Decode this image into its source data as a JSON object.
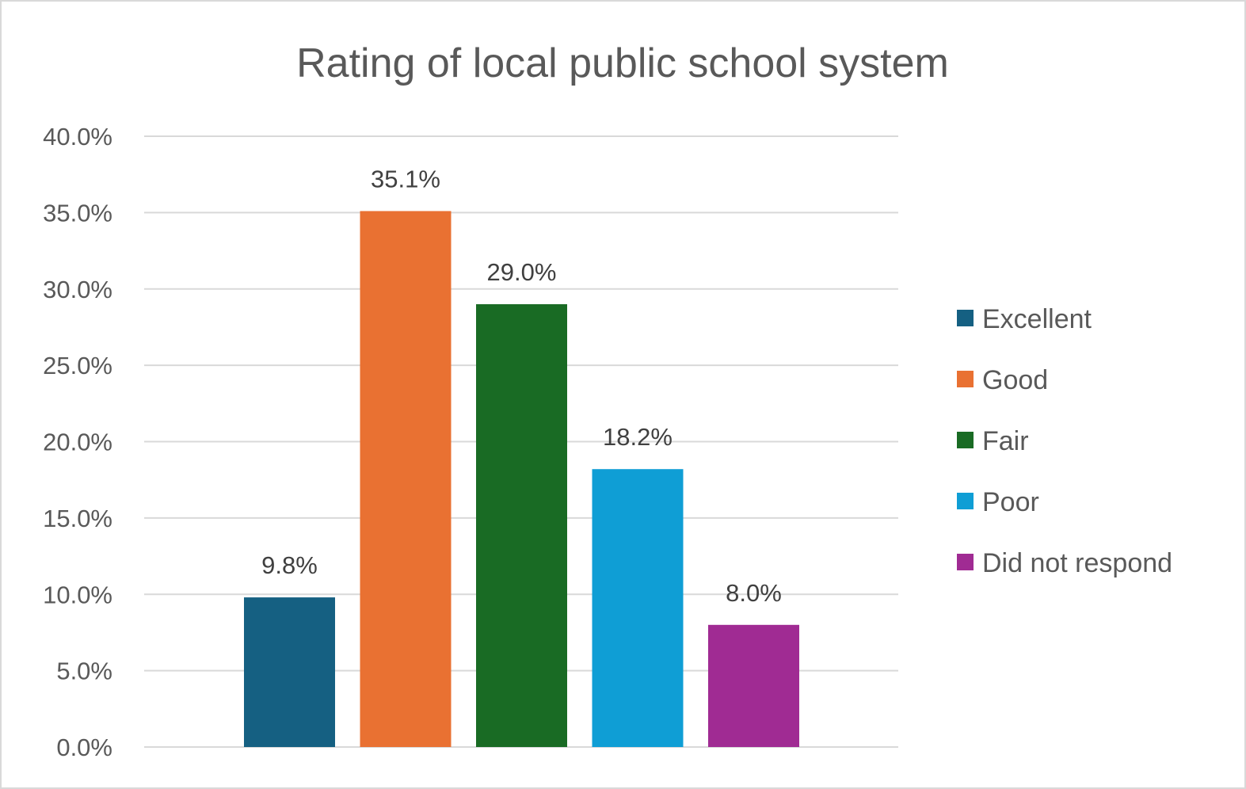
{
  "chart_data": {
    "type": "bar",
    "title": "Rating of local public school system",
    "xlabel": "",
    "ylabel": "",
    "categories": [
      "Excellent",
      "Good",
      "Fair",
      "Poor",
      "Did not respond"
    ],
    "values": [
      9.8,
      35.1,
      29.0,
      18.2,
      8.0
    ],
    "data_labels": [
      "9.8%",
      "35.1%",
      "29.0%",
      "18.2%",
      "8.0%"
    ],
    "colors": [
      "#156082",
      "#E97132",
      "#196B24",
      "#0F9ED5",
      "#A02B93"
    ],
    "ylim": [
      0,
      40
    ],
    "yticks": [
      0,
      5,
      10,
      15,
      20,
      25,
      30,
      35,
      40
    ],
    "ytick_labels": [
      "0.0%",
      "5.0%",
      "10.0%",
      "15.0%",
      "20.0%",
      "25.0%",
      "30.0%",
      "35.0%",
      "40.0%"
    ],
    "grid": true,
    "legend_position": "right",
    "legend": [
      "Excellent",
      "Good",
      "Fair",
      "Poor",
      "Did not respond"
    ]
  }
}
